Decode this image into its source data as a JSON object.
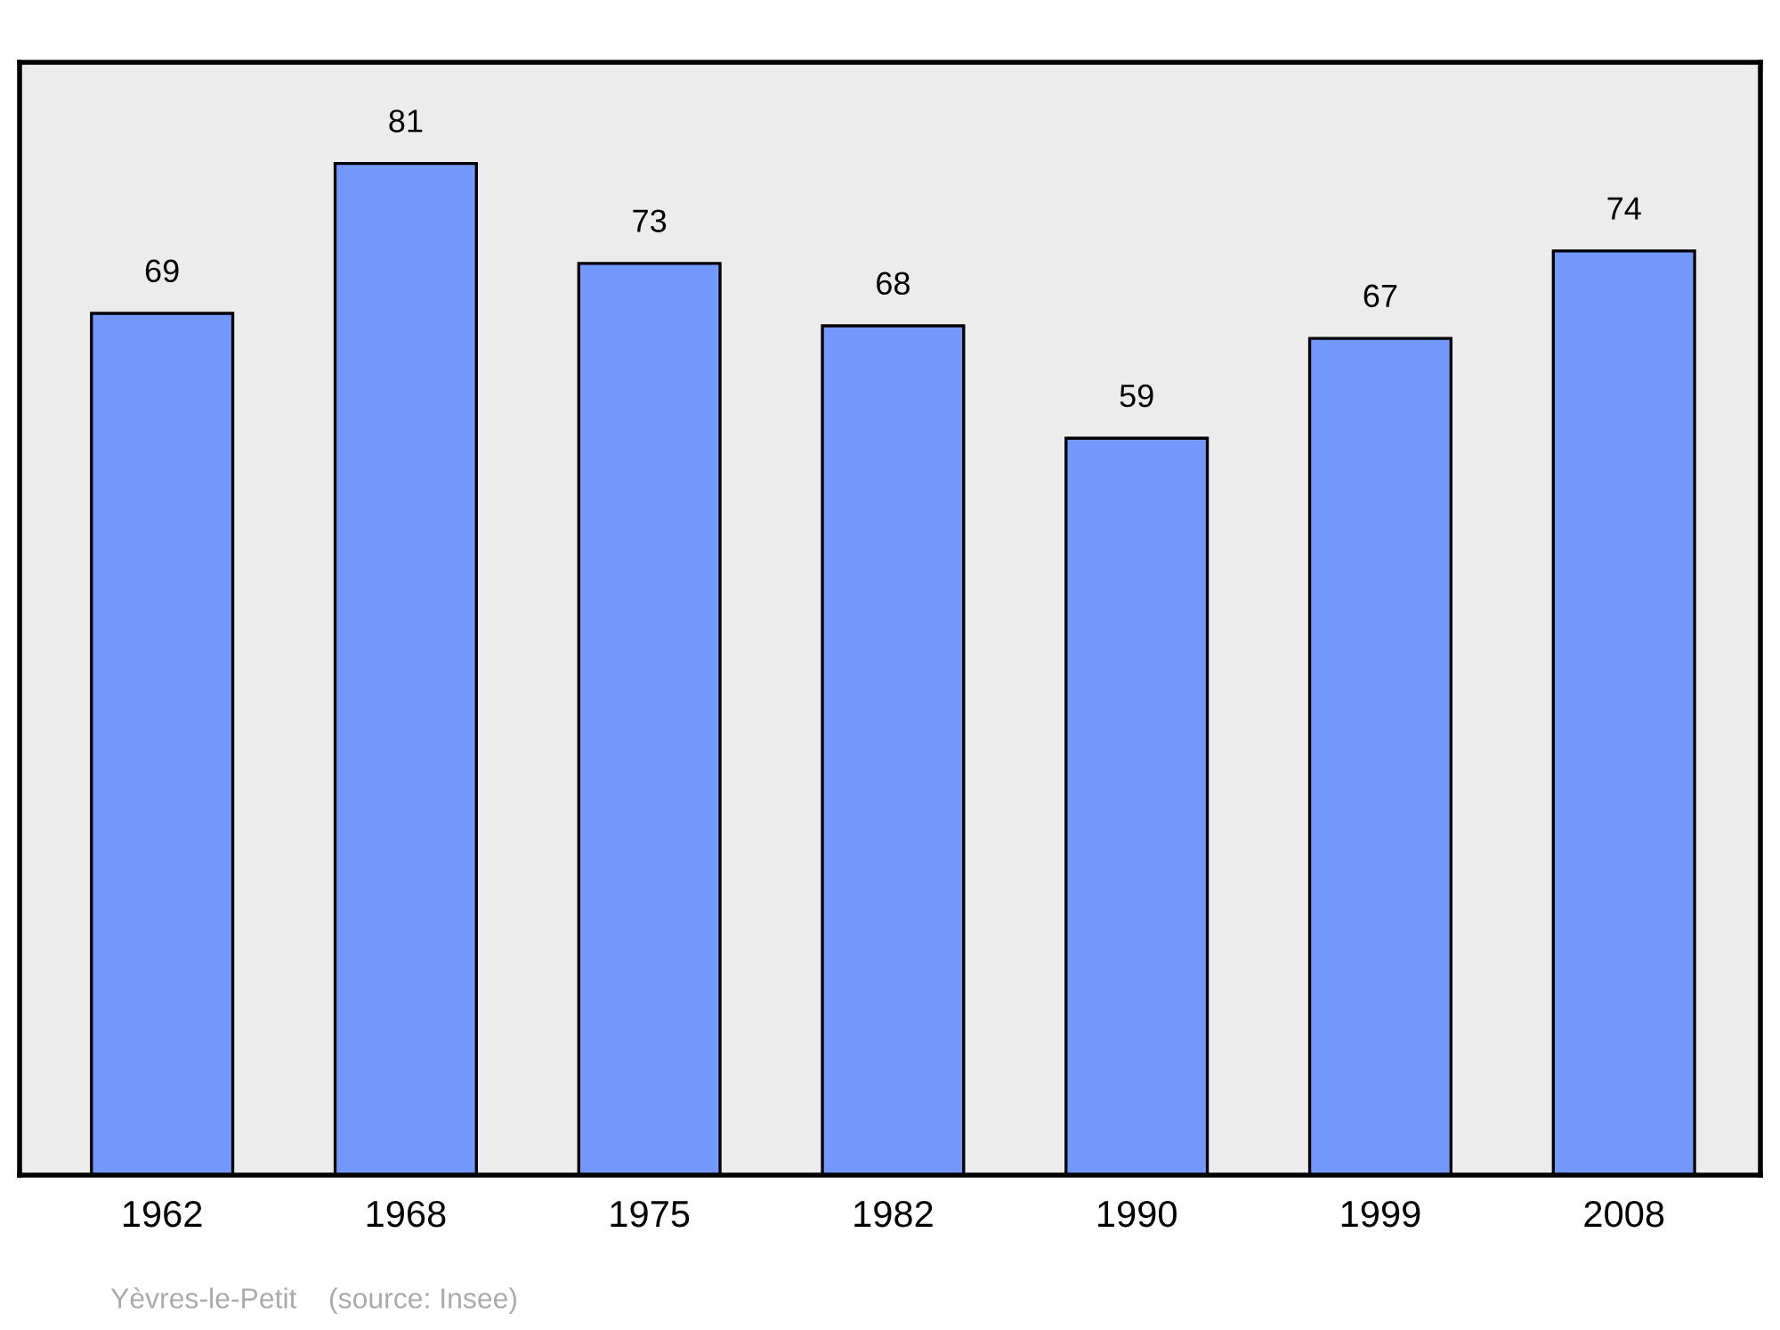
{
  "chart_data": {
    "type": "bar",
    "categories": [
      "1962",
      "1968",
      "1975",
      "1982",
      "1990",
      "1999",
      "2008"
    ],
    "values": [
      69,
      81,
      73,
      68,
      59,
      67,
      74
    ],
    "color": "#7399ff",
    "data_labels": true,
    "grid": false,
    "legend": false,
    "annotations": [
      "Yèvres-le-Petit    (source: Insee)"
    ]
  }
}
